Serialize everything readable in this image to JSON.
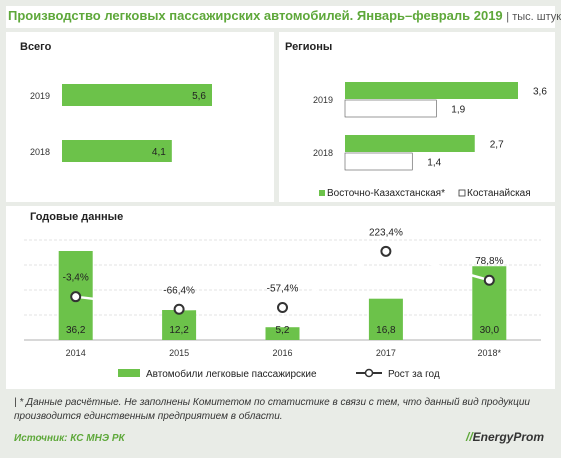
{
  "title": "Производство легковых пассажирских автомобилей. Январь–февраль 2019",
  "unit": "| тыс. штук",
  "colors": {
    "green": "#6cc24a",
    "white": "#ffffff",
    "line": "#ffffff",
    "dark": "#333333"
  },
  "chart_data": [
    {
      "type": "bar",
      "orientation": "horizontal",
      "title": "Всего",
      "categories": [
        "2019",
        "2018"
      ],
      "values": [
        5.6,
        4.1
      ],
      "value_labels": [
        "5,6",
        "4,1"
      ]
    },
    {
      "type": "bar",
      "orientation": "horizontal",
      "title": "Регионы",
      "categories": [
        "2019",
        "2018"
      ],
      "series": [
        {
          "name": "Восточно-Казахстанская*",
          "values": [
            3.6,
            2.7
          ],
          "labels": [
            "3,6",
            "2,7"
          ]
        },
        {
          "name": "Костанайская",
          "values": [
            1.9,
            1.4
          ],
          "labels": [
            "1,9",
            "1,4"
          ]
        }
      ],
      "legend": "bottom"
    },
    {
      "type": "bar",
      "title": "Годовые данные",
      "categories": [
        "2014",
        "2015",
        "2016",
        "2017",
        "2018*"
      ],
      "series": [
        {
          "name": "Автомобили легковые пассажирские",
          "values": [
            36.2,
            12.2,
            5.2,
            16.8,
            30.0
          ],
          "labels": [
            "36,2",
            "12,2",
            "5,2",
            "16,8",
            "30,0"
          ]
        },
        {
          "name": "Рост за год",
          "type": "line",
          "values": [
            -3.4,
            -66.4,
            -57.4,
            223.4,
            78.8
          ],
          "labels": [
            "-3,4%",
            "-66,4%",
            "-57,4%",
            "223,4%",
            "78,8%"
          ]
        }
      ],
      "grid": true,
      "legend": "bottom"
    }
  ],
  "note": "| * Данные расчётные. Не заполнены Комитетом по статистике в связи с тем, что данный вид продукции производится единственным предприятием в области.",
  "source": "Источник: КС МНЭ РК",
  "logo": {
    "text": "EnergyProm",
    "mark": "//"
  }
}
